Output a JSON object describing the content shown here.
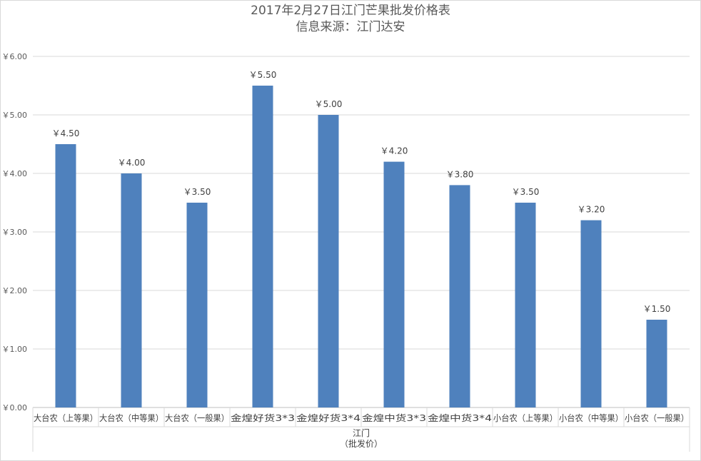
{
  "chart_data": {
    "type": "bar",
    "title": "2017年2月27日江门芒果批发价格表",
    "subtitle": "信息来源：江门达安",
    "categories": [
      "大台农（上等果）",
      "大台农（中等果）",
      "大台农（一般果）",
      "金煌好货3*3",
      "金煌好货3*4",
      "金煌中货3*3",
      "金煌中货3*4",
      "小台农（上等果）",
      "小台农（中等果）",
      "小台农（一般果）"
    ],
    "values": [
      4.5,
      4.0,
      3.5,
      5.5,
      5.0,
      4.2,
      3.8,
      3.5,
      3.2,
      1.5
    ],
    "data_labels": [
      "￥4.50",
      "￥4.00",
      "￥3.50",
      "￥5.50",
      "￥5.00",
      "￥4.20",
      "￥3.80",
      "￥3.50",
      "￥3.20",
      "￥1.50"
    ],
    "ylim": [
      0,
      6
    ],
    "yticks": [
      0,
      1,
      2,
      3,
      4,
      5,
      6
    ],
    "ytick_labels": [
      "￥0.00",
      "￥1.00",
      "￥2.00",
      "￥3.00",
      "￥4.00",
      "￥5.00",
      "￥6.00"
    ],
    "group_label": "江门",
    "group_sublabel": "（批发价）",
    "grid": true,
    "bar_color": "#4f81bd"
  }
}
